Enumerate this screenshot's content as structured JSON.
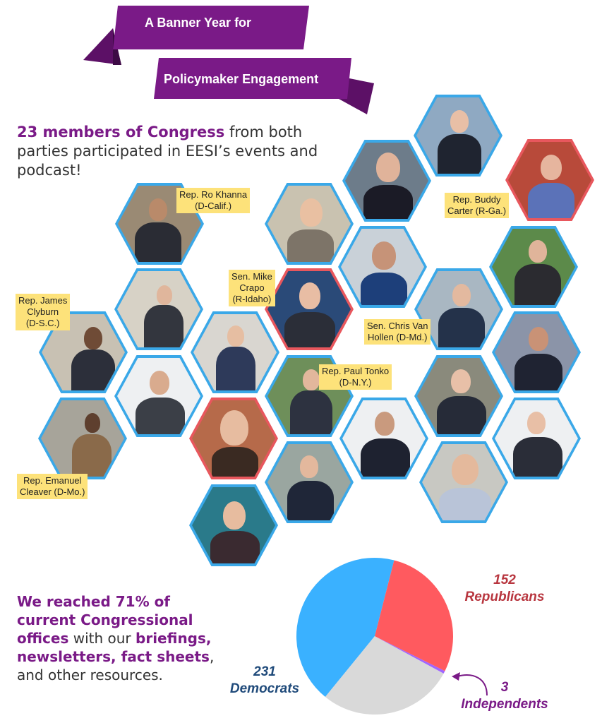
{
  "banner": {
    "line1": "A Banner Year for",
    "line2": "Policymaker Engagement"
  },
  "intro": {
    "highlight": "23 members of Congress",
    "rest": " from both parties participated in EESI’s events and podcast!"
  },
  "labels": [
    {
      "line1": "Rep. Ro Khanna",
      "line2": "(D-Calif.)"
    },
    {
      "line1": "Rep. Buddy",
      "line2": "Carter (R-Ga.)"
    },
    {
      "line1": "Sen. Mike",
      "line2": "Crapo",
      "line3": "(R-Idaho)"
    },
    {
      "line1": "Rep. James",
      "line2": "Clyburn",
      "line3": "(D-S.C.)"
    },
    {
      "line1": "Sen. Chris Van",
      "line2": "Hollen (D-Md.)"
    },
    {
      "line1": "Rep. Paul Tonko",
      "line2": "(D-N.Y.)"
    },
    {
      "line1": "Rep. Emanuel",
      "line2": "Cleaver (D-Mo.)"
    }
  ],
  "reach": {
    "hl1": "We reached 71% of current Congressional offices",
    "t1": " with our ",
    "hl2": "briefings, newsletters, fact sheets",
    "t2": ", and other resources."
  },
  "colors": {
    "purple": "#7a1a87",
    "democrat": "#3ab1ff",
    "republican": "#ff5a5f",
    "independent": "#a066ff",
    "hex_border_blue": "#3aa8e8",
    "hex_border_red": "#e8575d"
  },
  "chart_data": {
    "type": "pie",
    "slices": [
      {
        "label": "Democrats",
        "value": 231,
        "color": "#3ab1ff"
      },
      {
        "label": "Republicans",
        "value": 152,
        "color": "#ff5a5f"
      },
      {
        "label": "Independents",
        "value": 3,
        "color": "#a066ff"
      },
      {
        "label": "",
        "value": 150,
        "color": "#d9d9d9"
      }
    ],
    "annotations": [
      {
        "number": "152",
        "text": "Republicans"
      },
      {
        "number": "231",
        "text": "Democrats"
      },
      {
        "number": "3",
        "text": "Independents"
      }
    ]
  }
}
